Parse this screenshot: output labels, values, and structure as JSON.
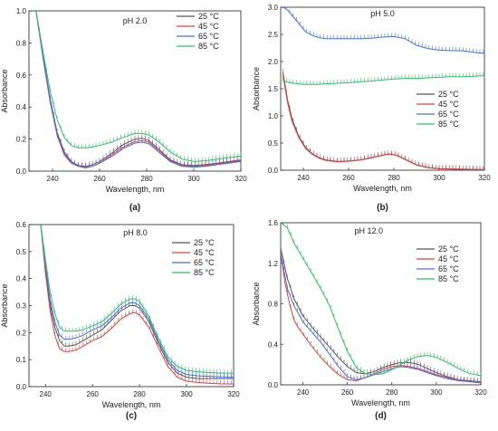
{
  "chart_data": [
    {
      "type": "line",
      "panel": "(a)",
      "title": "pH 2.0",
      "xlabel": "Wavelength, nm",
      "ylabel": "Absorbance",
      "xlim": [
        230,
        320
      ],
      "ylim": [
        0,
        1.0
      ],
      "xticks": [
        240,
        260,
        280,
        300,
        320
      ],
      "yticks": [
        0.0,
        0.2,
        0.4,
        0.6,
        0.8,
        1.0
      ],
      "legend_position": "top-right",
      "series": [
        {
          "name": "25 °C",
          "color": "#555555",
          "x": [
            233,
            236,
            239,
            242,
            245,
            248,
            251,
            254,
            257,
            260,
            265,
            270,
            275,
            278,
            281,
            285,
            290,
            295,
            300,
            305,
            310,
            315,
            320
          ],
          "y": [
            1.0,
            0.72,
            0.45,
            0.24,
            0.12,
            0.06,
            0.035,
            0.03,
            0.04,
            0.06,
            0.11,
            0.165,
            0.2,
            0.205,
            0.19,
            0.14,
            0.07,
            0.04,
            0.035,
            0.04,
            0.05,
            0.06,
            0.07
          ]
        },
        {
          "name": "45 °C",
          "color": "#e04040",
          "x": [
            233,
            236,
            239,
            242,
            245,
            248,
            251,
            254,
            257,
            260,
            265,
            270,
            275,
            278,
            281,
            285,
            290,
            295,
            300,
            305,
            310,
            315,
            320
          ],
          "y": [
            1.0,
            0.7,
            0.43,
            0.22,
            0.1,
            0.05,
            0.03,
            0.025,
            0.03,
            0.05,
            0.1,
            0.15,
            0.185,
            0.19,
            0.18,
            0.13,
            0.065,
            0.035,
            0.03,
            0.035,
            0.045,
            0.055,
            0.065
          ]
        },
        {
          "name": "65 °C",
          "color": "#4a6fe0",
          "x": [
            233,
            236,
            239,
            242,
            245,
            248,
            251,
            254,
            257,
            260,
            265,
            270,
            275,
            278,
            281,
            285,
            290,
            295,
            300,
            305,
            310,
            315,
            320
          ],
          "y": [
            1.0,
            0.71,
            0.44,
            0.23,
            0.11,
            0.055,
            0.03,
            0.02,
            0.03,
            0.05,
            0.09,
            0.14,
            0.175,
            0.18,
            0.17,
            0.12,
            0.06,
            0.03,
            0.025,
            0.03,
            0.04,
            0.05,
            0.06
          ]
        },
        {
          "name": "85 °C",
          "color": "#2ebf6a",
          "x": [
            233,
            236,
            239,
            242,
            245,
            248,
            251,
            254,
            257,
            260,
            265,
            270,
            275,
            278,
            281,
            285,
            290,
            295,
            300,
            305,
            310,
            315,
            320
          ],
          "y": [
            1.0,
            0.74,
            0.5,
            0.32,
            0.21,
            0.16,
            0.145,
            0.145,
            0.15,
            0.16,
            0.18,
            0.21,
            0.235,
            0.235,
            0.225,
            0.185,
            0.12,
            0.075,
            0.06,
            0.065,
            0.075,
            0.085,
            0.095
          ]
        }
      ]
    },
    {
      "type": "line",
      "panel": "(b)",
      "title": "pH 5.0",
      "xlabel": "Wavelength, nm",
      "ylabel": "Absorbance",
      "xlim": [
        230,
        320
      ],
      "ylim": [
        0,
        3.0
      ],
      "xticks": [
        240,
        260,
        280,
        300,
        320
      ],
      "yticks": [
        0.0,
        0.5,
        1.0,
        1.5,
        2.0,
        2.5,
        3.0
      ],
      "legend_position": "right",
      "series": [
        {
          "name": "25 °C",
          "color": "#555555",
          "x": [
            231,
            233,
            235,
            238,
            241,
            244,
            247,
            250,
            255,
            260,
            265,
            270,
            275,
            278,
            281,
            285,
            290,
            295,
            300,
            310,
            320
          ],
          "y": [
            1.8,
            1.3,
            0.95,
            0.62,
            0.42,
            0.3,
            0.23,
            0.19,
            0.16,
            0.17,
            0.19,
            0.23,
            0.28,
            0.3,
            0.28,
            0.2,
            0.1,
            0.05,
            0.03,
            0.02,
            0.01
          ]
        },
        {
          "name": "45 °C",
          "color": "#e04040",
          "x": [
            231,
            233,
            235,
            238,
            241,
            244,
            247,
            250,
            255,
            260,
            265,
            270,
            275,
            278,
            281,
            285,
            290,
            295,
            300,
            310,
            320
          ],
          "y": [
            1.75,
            1.25,
            0.9,
            0.6,
            0.4,
            0.29,
            0.22,
            0.18,
            0.155,
            0.165,
            0.185,
            0.225,
            0.275,
            0.295,
            0.275,
            0.195,
            0.095,
            0.045,
            0.025,
            0.015,
            0.01
          ]
        },
        {
          "name": "65 °C",
          "color": "#4a6fe0",
          "x": [
            231,
            233,
            235,
            238,
            241,
            244,
            247,
            250,
            255,
            260,
            265,
            270,
            275,
            280,
            285,
            290,
            295,
            300,
            305,
            310,
            315,
            320
          ],
          "y": [
            3.0,
            2.95,
            2.85,
            2.7,
            2.55,
            2.48,
            2.44,
            2.42,
            2.42,
            2.42,
            2.42,
            2.43,
            2.45,
            2.46,
            2.42,
            2.3,
            2.24,
            2.21,
            2.2,
            2.2,
            2.17,
            2.15
          ]
        },
        {
          "name": "85 °C",
          "color": "#2ebf6a",
          "x": [
            231,
            233,
            236,
            240,
            245,
            250,
            255,
            260,
            265,
            270,
            275,
            280,
            285,
            290,
            295,
            300,
            305,
            310,
            315,
            320
          ],
          "y": [
            1.65,
            1.62,
            1.6,
            1.58,
            1.58,
            1.59,
            1.6,
            1.61,
            1.63,
            1.64,
            1.66,
            1.68,
            1.69,
            1.69,
            1.7,
            1.71,
            1.72,
            1.72,
            1.73,
            1.74
          ]
        }
      ]
    },
    {
      "type": "line",
      "panel": "(c)",
      "title": "pH 8.0",
      "xlabel": "Wavelength, nm",
      "ylabel": "Absorbance",
      "xlim": [
        233,
        320
      ],
      "ylim": [
        0,
        0.6
      ],
      "xticks": [
        240,
        260,
        280,
        300,
        320
      ],
      "yticks": [
        0.0,
        0.1,
        0.2,
        0.3,
        0.4,
        0.5,
        0.6
      ],
      "legend_position": "top-right",
      "series": [
        {
          "name": "25 °C",
          "color": "#555555",
          "x": [
            238,
            240,
            242,
            244,
            246,
            248,
            250,
            253,
            256,
            260,
            264,
            268,
            272,
            276,
            278,
            280,
            284,
            288,
            292,
            296,
            300,
            305,
            310,
            315,
            320
          ],
          "y": [
            0.6,
            0.44,
            0.3,
            0.22,
            0.17,
            0.15,
            0.15,
            0.155,
            0.17,
            0.19,
            0.21,
            0.245,
            0.28,
            0.3,
            0.3,
            0.29,
            0.24,
            0.16,
            0.09,
            0.05,
            0.035,
            0.03,
            0.03,
            0.03,
            0.03
          ]
        },
        {
          "name": "45 °C",
          "color": "#e04040",
          "x": [
            238,
            240,
            242,
            244,
            246,
            248,
            250,
            253,
            256,
            260,
            264,
            268,
            272,
            276,
            278,
            280,
            284,
            288,
            292,
            296,
            300,
            305,
            310,
            315,
            320
          ],
          "y": [
            0.6,
            0.42,
            0.28,
            0.19,
            0.14,
            0.13,
            0.13,
            0.135,
            0.15,
            0.17,
            0.185,
            0.215,
            0.25,
            0.27,
            0.275,
            0.265,
            0.22,
            0.145,
            0.075,
            0.035,
            0.02,
            0.015,
            0.012,
            0.01,
            0.01
          ]
        },
        {
          "name": "65 °C",
          "color": "#4a6fe0",
          "x": [
            238,
            240,
            242,
            244,
            246,
            248,
            250,
            253,
            256,
            260,
            264,
            268,
            272,
            276,
            278,
            280,
            284,
            288,
            292,
            296,
            300,
            305,
            310,
            315,
            320
          ],
          "y": [
            0.6,
            0.45,
            0.32,
            0.24,
            0.19,
            0.175,
            0.175,
            0.18,
            0.19,
            0.21,
            0.225,
            0.255,
            0.29,
            0.31,
            0.31,
            0.3,
            0.25,
            0.17,
            0.1,
            0.06,
            0.045,
            0.04,
            0.038,
            0.036,
            0.035
          ]
        },
        {
          "name": "85 °C",
          "color": "#2ebf6a",
          "x": [
            238,
            240,
            242,
            244,
            246,
            248,
            250,
            253,
            256,
            260,
            264,
            268,
            272,
            276,
            278,
            280,
            284,
            288,
            292,
            296,
            300,
            305,
            310,
            315,
            320
          ],
          "y": [
            0.6,
            0.47,
            0.35,
            0.27,
            0.22,
            0.205,
            0.205,
            0.205,
            0.21,
            0.225,
            0.24,
            0.27,
            0.305,
            0.325,
            0.325,
            0.315,
            0.26,
            0.18,
            0.11,
            0.075,
            0.06,
            0.055,
            0.052,
            0.05,
            0.05
          ]
        }
      ]
    },
    {
      "type": "line",
      "panel": "(d)",
      "title": "pH 12.0",
      "xlabel": "Wavelength, nm",
      "ylabel": "Absorbance",
      "xlim": [
        230,
        320
      ],
      "ylim": [
        0,
        1.6
      ],
      "xticks": [
        240,
        260,
        280,
        300,
        320
      ],
      "yticks": [
        0.0,
        0.4,
        0.8,
        1.2,
        1.6
      ],
      "legend_position": "right",
      "series": [
        {
          "name": "25 °C",
          "color": "#555555",
          "x": [
            230,
            233,
            236,
            240,
            244,
            248,
            252,
            256,
            260,
            264,
            268,
            272,
            276,
            280,
            284,
            288,
            292,
            296,
            300,
            305,
            310,
            315,
            320
          ],
          "y": [
            1.35,
            1.05,
            0.85,
            0.68,
            0.57,
            0.47,
            0.37,
            0.27,
            0.18,
            0.12,
            0.11,
            0.13,
            0.17,
            0.2,
            0.22,
            0.22,
            0.2,
            0.16,
            0.12,
            0.08,
            0.05,
            0.04,
            0.03
          ]
        },
        {
          "name": "45 °C",
          "color": "#e04040",
          "x": [
            230,
            232,
            234,
            236,
            238,
            240,
            244,
            248,
            252,
            256,
            260,
            264,
            268,
            272,
            276,
            280,
            284,
            288,
            292,
            296,
            300,
            305,
            310,
            315,
            320
          ],
          "y": [
            1.3,
            1.0,
            0.8,
            0.64,
            0.56,
            0.5,
            0.38,
            0.27,
            0.18,
            0.1,
            0.05,
            0.04,
            0.07,
            0.11,
            0.15,
            0.18,
            0.19,
            0.18,
            0.16,
            0.13,
            0.1,
            0.07,
            0.05,
            0.03,
            0.02
          ]
        },
        {
          "name": "65 °C",
          "color": "#4a6fe0",
          "x": [
            230,
            233,
            236,
            240,
            244,
            248,
            252,
            256,
            260,
            264,
            268,
            272,
            276,
            280,
            284,
            288,
            292,
            296,
            300,
            305,
            310,
            315,
            320
          ],
          "y": [
            1.3,
            0.95,
            0.78,
            0.62,
            0.52,
            0.42,
            0.3,
            0.18,
            0.08,
            0.05,
            0.07,
            0.1,
            0.13,
            0.16,
            0.18,
            0.17,
            0.15,
            0.12,
            0.09,
            0.06,
            0.04,
            0.03,
            0.02
          ]
        },
        {
          "name": "85 °C",
          "color": "#2ebf6a",
          "x": [
            230,
            233,
            236,
            240,
            244,
            248,
            252,
            256,
            260,
            264,
            268,
            272,
            276,
            280,
            284,
            288,
            292,
            296,
            300,
            305,
            310,
            315,
            320
          ],
          "y": [
            1.6,
            1.55,
            1.4,
            1.25,
            1.1,
            0.95,
            0.78,
            0.55,
            0.33,
            0.17,
            0.11,
            0.1,
            0.11,
            0.15,
            0.2,
            0.25,
            0.28,
            0.29,
            0.27,
            0.22,
            0.16,
            0.11,
            0.09
          ]
        }
      ]
    }
  ]
}
